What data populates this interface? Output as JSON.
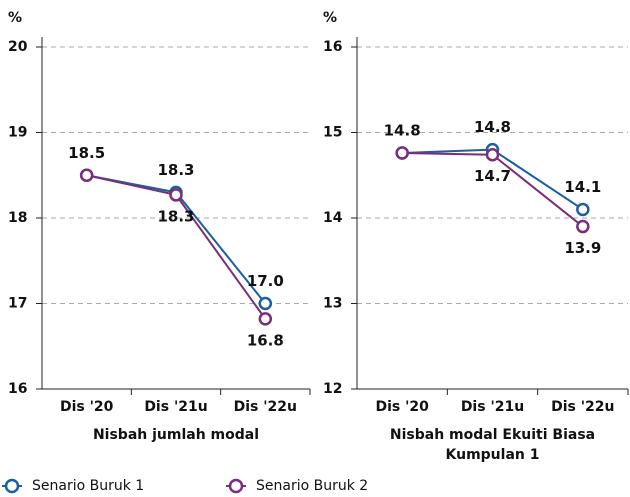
{
  "chart_data": [
    {
      "type": "line",
      "ylabel": "%",
      "xlabel": [
        "Nisbah jumlah modal"
      ],
      "categories": [
        "Dis '20",
        "Dis '21u",
        "Dis '22u"
      ],
      "ylim": [
        16,
        20
      ],
      "yticks": [
        16,
        17,
        18,
        19,
        20
      ],
      "grid": true,
      "legend": "bottom-left",
      "series": [
        {
          "name": "Senario Buruk 1",
          "color": "#1a5fa0",
          "values": [
            18.5,
            18.3,
            17.0
          ],
          "value_labels": [
            "18.5",
            "18.3",
            "17.0"
          ]
        },
        {
          "name": "Senario Buruk 2",
          "color": "#7b2d7b",
          "values": [
            18.5,
            18.27,
            16.82
          ],
          "value_labels": [
            null,
            "18.3",
            "16.8"
          ]
        }
      ]
    },
    {
      "type": "line",
      "ylabel": "%",
      "xlabel": [
        "Nisbah modal Ekuiti Biasa",
        "Kumpulan 1"
      ],
      "categories": [
        "Dis '20",
        "Dis '21u",
        "Dis '22u"
      ],
      "ylim": [
        12,
        16
      ],
      "yticks": [
        12,
        13,
        14,
        15,
        16
      ],
      "grid": true,
      "series": [
        {
          "name": "Senario Buruk 1",
          "color": "#1a5fa0",
          "values": [
            14.76,
            14.8,
            14.1
          ],
          "value_labels": [
            "14.8",
            "14.8",
            "14.1"
          ]
        },
        {
          "name": "Senario Buruk 2",
          "color": "#7b2d7b",
          "values": [
            14.76,
            14.74,
            13.9
          ],
          "value_labels": [
            null,
            "14.7",
            "13.9"
          ]
        }
      ]
    }
  ]
}
